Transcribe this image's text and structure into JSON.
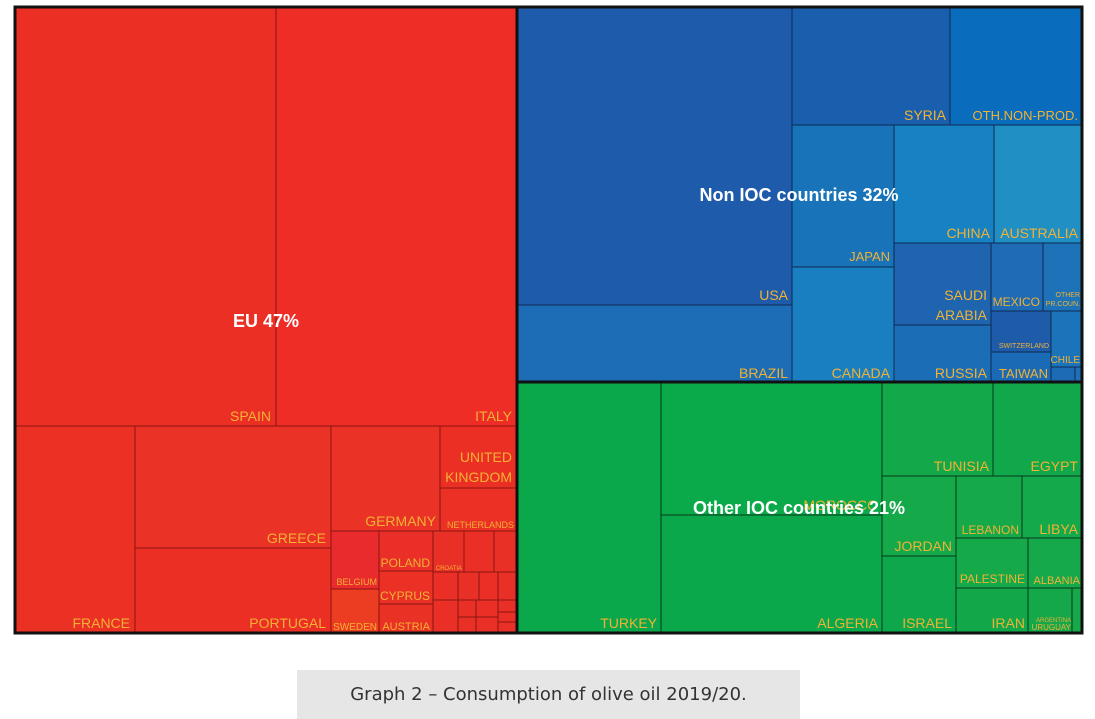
{
  "caption": "Graph 2 – Consumption of olive oil 2019/20.",
  "colors": {
    "eu": "#ee2e24",
    "non_ioc": "#2060b0",
    "other_ioc": "#0aa84a",
    "label": "#f2b233",
    "border": "#111111"
  },
  "chart_data": {
    "type": "treemap",
    "title": "",
    "groups": [
      {
        "name": "EU",
        "label": "EU 47%",
        "share": 47,
        "members": [
          "SPAIN",
          "ITALY",
          "FRANCE",
          "GREECE",
          "PORTUGAL",
          "GERMANY",
          "UNITED KINGDOM",
          "NETHERLANDS",
          "BELGIUM",
          "POLAND",
          "CROATIA",
          "CYPRUS",
          "SWEDEN",
          "AUSTRIA"
        ]
      },
      {
        "name": "Non IOC countries",
        "label": "Non IOC countries 32%",
        "share": 32,
        "members": [
          "USA",
          "BRAZIL",
          "SYRIA",
          "OTH.NON-PROD.",
          "JAPAN",
          "CANADA",
          "CHINA",
          "AUSTRALIA",
          "SAUDI ARABIA",
          "MEXICO",
          "OTHER PR.COUN.",
          "SWITZERLAND",
          "CHILE",
          "RUSSIA",
          "TAIWAN"
        ]
      },
      {
        "name": "Other IOC countries",
        "label": "Other IOC countries 21%",
        "share": 21,
        "members": [
          "TURKEY",
          "MOROCCO",
          "ALGERIA",
          "TUNISIA",
          "EGYPT",
          "JORDAN",
          "LEBANON",
          "LIBYA",
          "PALESTINE",
          "ALBANIA",
          "ISRAEL",
          "IRAN",
          "ARGENTINA",
          "URUGUAY"
        ]
      }
    ],
    "cell_labels": {
      "spain": "SPAIN",
      "italy": "ITALY",
      "france": "FRANCE",
      "greece": "GREECE",
      "portugal": "PORTUGAL",
      "germany": "GERMANY",
      "uk_1": "UNITED",
      "uk_2": "KINGDOM",
      "netherlands": "NETHERLANDS",
      "belgium": "BELGIUM",
      "poland": "POLAND",
      "croatia": "CROATIA",
      "cyprus": "CYPRUS",
      "sweden": "SWEDEN",
      "austria": "AUSTRIA",
      "usa": "USA",
      "brazil": "BRAZIL",
      "syria": "SYRIA",
      "oth_non_prod": "OTH.NON-PROD.",
      "japan": "JAPAN",
      "canada": "CANADA",
      "china": "CHINA",
      "australia": "AUSTRALIA",
      "saudi_1": "SAUDI",
      "saudi_2": "ARABIA",
      "mexico": "MEXICO",
      "other_pr_1": "OTHER",
      "other_pr_2": "PR.COUN.",
      "switzerland": "SWITZERLAND",
      "chile": "CHILE",
      "russia": "RUSSIA",
      "taiwan": "TAIWAN",
      "turkey": "TURKEY",
      "morocco": "MOROCCO",
      "algeria": "ALGERIA",
      "tunisia": "TUNISIA",
      "egypt": "EGYPT",
      "jordan": "JORDAN",
      "lebanon": "LEBANON",
      "libya": "LIBYA",
      "palestine": "PALESTINE",
      "albania": "ALBANIA",
      "israel": "ISRAEL",
      "iran": "IRAN",
      "argentina": "ARGENTINA",
      "uruguay": "URUGUAY"
    }
  }
}
